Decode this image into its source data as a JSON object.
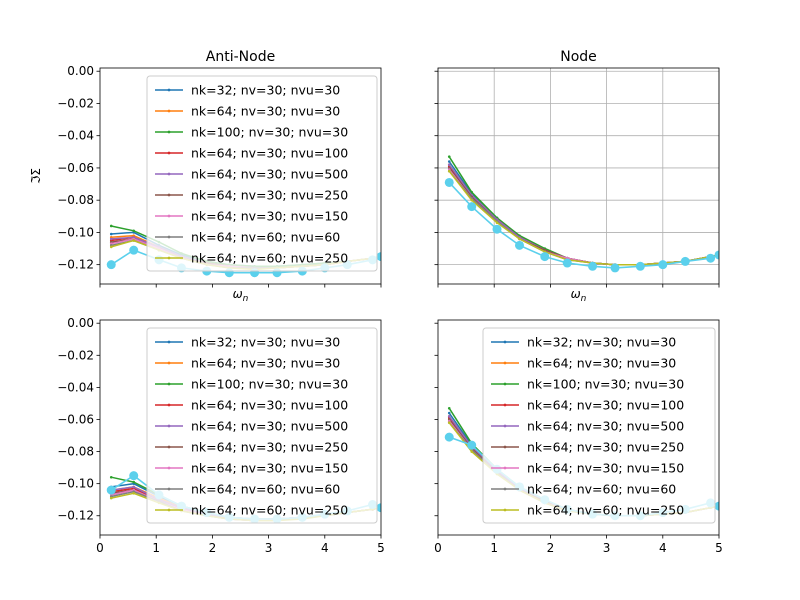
{
  "chart_data": [
    {
      "type": "line",
      "title": "Anti-Node",
      "xlabel": "ω_n",
      "ylabel": "ℑΣ",
      "xlim": [
        0,
        5
      ],
      "ylim": [
        -0.132,
        0.002
      ],
      "x_ticks": [],
      "y_ticks": [
        "0.00",
        "−0.02",
        "−0.04",
        "−0.06",
        "−0.08",
        "−0.10",
        "−0.12"
      ],
      "grid": false,
      "legend": "upper-right",
      "x": [
        0.2,
        0.6,
        1.05,
        1.45,
        1.9,
        2.3,
        2.75,
        3.15,
        3.6,
        4.0,
        4.4,
        4.85,
        5.0
      ],
      "series": [
        {
          "name": "nk=32; nv=30; nvu=30",
          "color": "#1f77b4",
          "values": [
            -0.101,
            -0.1,
            -0.108,
            -0.114,
            -0.118,
            -0.12,
            -0.121,
            -0.121,
            -0.12,
            -0.119,
            -0.118,
            -0.116,
            -0.115
          ]
        },
        {
          "name": "nk=64; nv=30; nvu=30",
          "color": "#ff7f0e",
          "values": [
            -0.103,
            -0.102,
            -0.109,
            -0.115,
            -0.119,
            -0.121,
            -0.122,
            -0.122,
            -0.121,
            -0.12,
            -0.118,
            -0.116,
            -0.115
          ]
        },
        {
          "name": "nk=100; nv=30; nvu=30",
          "color": "#2ca02c",
          "values": [
            -0.096,
            -0.099,
            -0.106,
            -0.113,
            -0.118,
            -0.12,
            -0.121,
            -0.121,
            -0.12,
            -0.119,
            -0.118,
            -0.116,
            -0.115
          ]
        },
        {
          "name": "nk=64; nv=30; nvu=100",
          "color": "#d62728",
          "values": [
            -0.105,
            -0.103,
            -0.11,
            -0.115,
            -0.119,
            -0.121,
            -0.122,
            -0.122,
            -0.121,
            -0.12,
            -0.118,
            -0.116,
            -0.115
          ]
        },
        {
          "name": "nk=64; nv=30; nvu=500",
          "color": "#9467bd",
          "values": [
            -0.104,
            -0.103,
            -0.109,
            -0.115,
            -0.119,
            -0.121,
            -0.122,
            -0.122,
            -0.121,
            -0.12,
            -0.118,
            -0.116,
            -0.115
          ]
        },
        {
          "name": "nk=64; nv=30; nvu=250",
          "color": "#8c564b",
          "values": [
            -0.106,
            -0.104,
            -0.11,
            -0.116,
            -0.119,
            -0.121,
            -0.122,
            -0.122,
            -0.121,
            -0.12,
            -0.118,
            -0.116,
            -0.115
          ]
        },
        {
          "name": "nk=64; nv=30; nvu=150",
          "color": "#e377c2",
          "values": [
            -0.107,
            -0.104,
            -0.11,
            -0.116,
            -0.12,
            -0.121,
            -0.122,
            -0.122,
            -0.121,
            -0.12,
            -0.118,
            -0.116,
            -0.115
          ]
        },
        {
          "name": "nk=64; nv=60; nvu=60",
          "color": "#7f7f7f",
          "values": [
            -0.108,
            -0.105,
            -0.111,
            -0.116,
            -0.12,
            -0.122,
            -0.122,
            -0.122,
            -0.121,
            -0.12,
            -0.118,
            -0.116,
            -0.115
          ]
        },
        {
          "name": "nk=64; nv=60; nvu=250",
          "color": "#bcbd22",
          "values": [
            -0.109,
            -0.105,
            -0.111,
            -0.116,
            -0.12,
            -0.122,
            -0.123,
            -0.122,
            -0.121,
            -0.12,
            -0.118,
            -0.116,
            -0.115
          ]
        },
        {
          "color": "#5bd0ec",
          "marker": "large",
          "values": [
            -0.12,
            -0.111,
            -0.117,
            -0.122,
            -0.124,
            -0.125,
            -0.125,
            -0.125,
            -0.124,
            -0.122,
            -0.12,
            -0.117,
            -0.115
          ]
        }
      ]
    },
    {
      "type": "line",
      "title": "Node",
      "xlabel": "ω_n",
      "ylabel": "",
      "xlim": [
        0,
        5
      ],
      "ylim": [
        -0.132,
        0.002
      ],
      "x_ticks": [],
      "y_ticks": [],
      "grid": true,
      "legend": "none",
      "x": [
        0.2,
        0.6,
        1.05,
        1.45,
        1.9,
        2.3,
        2.75,
        3.15,
        3.6,
        4.0,
        4.4,
        4.85,
        5.0
      ],
      "series": [
        {
          "color": "#1f77b4",
          "values": [
            -0.056,
            -0.076,
            -0.091,
            -0.103,
            -0.111,
            -0.116,
            -0.119,
            -0.12,
            -0.12,
            -0.119,
            -0.118,
            -0.115,
            -0.114
          ]
        },
        {
          "color": "#ff7f0e",
          "values": [
            -0.058,
            -0.077,
            -0.092,
            -0.103,
            -0.111,
            -0.116,
            -0.119,
            -0.12,
            -0.12,
            -0.119,
            -0.118,
            -0.115,
            -0.114
          ]
        },
        {
          "color": "#2ca02c",
          "values": [
            -0.053,
            -0.075,
            -0.091,
            -0.102,
            -0.11,
            -0.116,
            -0.119,
            -0.12,
            -0.12,
            -0.119,
            -0.118,
            -0.115,
            -0.114
          ]
        },
        {
          "color": "#d62728",
          "values": [
            -0.059,
            -0.078,
            -0.092,
            -0.103,
            -0.111,
            -0.116,
            -0.119,
            -0.12,
            -0.12,
            -0.119,
            -0.118,
            -0.115,
            -0.114
          ]
        },
        {
          "color": "#9467bd",
          "values": [
            -0.058,
            -0.077,
            -0.092,
            -0.103,
            -0.111,
            -0.116,
            -0.119,
            -0.12,
            -0.12,
            -0.119,
            -0.118,
            -0.115,
            -0.114
          ]
        },
        {
          "color": "#8c564b",
          "values": [
            -0.06,
            -0.078,
            -0.093,
            -0.104,
            -0.111,
            -0.116,
            -0.119,
            -0.12,
            -0.12,
            -0.119,
            -0.118,
            -0.115,
            -0.114
          ]
        },
        {
          "color": "#e377c2",
          "values": [
            -0.061,
            -0.079,
            -0.093,
            -0.104,
            -0.112,
            -0.116,
            -0.119,
            -0.12,
            -0.12,
            -0.119,
            -0.118,
            -0.115,
            -0.114
          ]
        },
        {
          "color": "#7f7f7f",
          "values": [
            -0.062,
            -0.079,
            -0.093,
            -0.104,
            -0.112,
            -0.117,
            -0.119,
            -0.12,
            -0.12,
            -0.119,
            -0.118,
            -0.115,
            -0.114
          ]
        },
        {
          "color": "#bcbd22",
          "values": [
            -0.062,
            -0.08,
            -0.094,
            -0.104,
            -0.112,
            -0.117,
            -0.119,
            -0.12,
            -0.12,
            -0.119,
            -0.118,
            -0.115,
            -0.114
          ]
        },
        {
          "color": "#5bd0ec",
          "marker": "large",
          "values": [
            -0.069,
            -0.084,
            -0.098,
            -0.108,
            -0.115,
            -0.119,
            -0.121,
            -0.122,
            -0.121,
            -0.12,
            -0.118,
            -0.116,
            -0.114
          ]
        }
      ]
    },
    {
      "type": "line",
      "title": "",
      "xlabel": "",
      "ylabel": "",
      "xlim": [
        0,
        5
      ],
      "ylim": [
        -0.132,
        0.002
      ],
      "x_ticks": [
        "0",
        "1",
        "2",
        "3",
        "4",
        "5"
      ],
      "y_ticks": [
        "0.00",
        "−0.02",
        "−0.04",
        "−0.06",
        "−0.08",
        "−0.10",
        "−0.12"
      ],
      "grid": false,
      "legend": "upper-right",
      "x": [
        0.2,
        0.6,
        1.05,
        1.45,
        1.9,
        2.3,
        2.75,
        3.15,
        3.6,
        4.0,
        4.4,
        4.85,
        5.0
      ],
      "series": [
        {
          "name": "nk=32; nv=30; nvu=30",
          "color": "#1f77b4",
          "values": [
            -0.102,
            -0.1,
            -0.108,
            -0.114,
            -0.118,
            -0.121,
            -0.122,
            -0.122,
            -0.121,
            -0.12,
            -0.118,
            -0.116,
            -0.115
          ]
        },
        {
          "name": "nk=64; nv=30; nvu=30",
          "color": "#ff7f0e",
          "values": [
            -0.104,
            -0.102,
            -0.109,
            -0.115,
            -0.119,
            -0.121,
            -0.122,
            -0.122,
            -0.121,
            -0.12,
            -0.118,
            -0.116,
            -0.115
          ]
        },
        {
          "name": "nk=100; nv=30; nvu=30",
          "color": "#2ca02c",
          "values": [
            -0.096,
            -0.099,
            -0.107,
            -0.114,
            -0.118,
            -0.121,
            -0.122,
            -0.122,
            -0.121,
            -0.12,
            -0.118,
            -0.116,
            -0.115
          ]
        },
        {
          "name": "nk=64; nv=30; nvu=100",
          "color": "#d62728",
          "values": [
            -0.105,
            -0.103,
            -0.11,
            -0.116,
            -0.119,
            -0.122,
            -0.123,
            -0.122,
            -0.121,
            -0.12,
            -0.118,
            -0.116,
            -0.115
          ]
        },
        {
          "name": "nk=64; nv=30; nvu=500",
          "color": "#9467bd",
          "values": [
            -0.104,
            -0.102,
            -0.11,
            -0.115,
            -0.119,
            -0.121,
            -0.122,
            -0.122,
            -0.121,
            -0.12,
            -0.118,
            -0.116,
            -0.115
          ]
        },
        {
          "name": "nk=64; nv=30; nvu=250",
          "color": "#8c564b",
          "values": [
            -0.106,
            -0.104,
            -0.111,
            -0.116,
            -0.12,
            -0.122,
            -0.123,
            -0.122,
            -0.121,
            -0.12,
            -0.118,
            -0.116,
            -0.115
          ]
        },
        {
          "name": "nk=64; nv=30; nvu=150",
          "color": "#e377c2",
          "values": [
            -0.107,
            -0.104,
            -0.111,
            -0.116,
            -0.12,
            -0.122,
            -0.123,
            -0.122,
            -0.121,
            -0.12,
            -0.118,
            -0.116,
            -0.115
          ]
        },
        {
          "name": "nk=64; nv=60; nvu=60",
          "color": "#7f7f7f",
          "values": [
            -0.108,
            -0.105,
            -0.111,
            -0.117,
            -0.12,
            -0.122,
            -0.123,
            -0.123,
            -0.121,
            -0.12,
            -0.118,
            -0.116,
            -0.115
          ]
        },
        {
          "name": "nk=64; nv=60; nvu=250",
          "color": "#bcbd22",
          "values": [
            -0.109,
            -0.106,
            -0.112,
            -0.117,
            -0.12,
            -0.122,
            -0.123,
            -0.123,
            -0.122,
            -0.12,
            -0.118,
            -0.116,
            -0.115
          ]
        },
        {
          "color": "#5bd0ec",
          "marker": "large",
          "values": [
            -0.104,
            -0.095,
            -0.107,
            -0.114,
            -0.118,
            -0.121,
            -0.122,
            -0.122,
            -0.121,
            -0.119,
            -0.117,
            -0.113,
            -0.115
          ]
        }
      ]
    },
    {
      "type": "line",
      "title": "",
      "xlabel": "",
      "ylabel": "",
      "xlim": [
        0,
        5
      ],
      "ylim": [
        -0.132,
        0.002
      ],
      "x_ticks": [
        "0",
        "1",
        "2",
        "3",
        "4",
        "5"
      ],
      "y_ticks": [],
      "grid": false,
      "legend": "upper-right",
      "x": [
        0.2,
        0.6,
        1.05,
        1.45,
        1.9,
        2.3,
        2.75,
        3.15,
        3.6,
        4.0,
        4.4,
        4.85,
        5.0
      ],
      "series": [
        {
          "name": "nk=32; nv=30; nvu=30",
          "color": "#1f77b4",
          "values": [
            -0.056,
            -0.076,
            -0.091,
            -0.103,
            -0.111,
            -0.116,
            -0.119,
            -0.12,
            -0.12,
            -0.119,
            -0.118,
            -0.115,
            -0.114
          ]
        },
        {
          "name": "nk=64; nv=30; nvu=30",
          "color": "#ff7f0e",
          "values": [
            -0.058,
            -0.077,
            -0.092,
            -0.103,
            -0.111,
            -0.116,
            -0.119,
            -0.12,
            -0.12,
            -0.119,
            -0.118,
            -0.115,
            -0.114
          ]
        },
        {
          "name": "nk=100; nv=30; nvu=30",
          "color": "#2ca02c",
          "values": [
            -0.053,
            -0.075,
            -0.091,
            -0.102,
            -0.11,
            -0.116,
            -0.119,
            -0.12,
            -0.12,
            -0.119,
            -0.118,
            -0.115,
            -0.114
          ]
        },
        {
          "name": "nk=64; nv=30; nvu=100",
          "color": "#d62728",
          "values": [
            -0.059,
            -0.078,
            -0.092,
            -0.103,
            -0.111,
            -0.116,
            -0.119,
            -0.12,
            -0.12,
            -0.119,
            -0.118,
            -0.115,
            -0.114
          ]
        },
        {
          "name": "nk=64; nv=30; nvu=500",
          "color": "#9467bd",
          "values": [
            -0.058,
            -0.077,
            -0.092,
            -0.103,
            -0.111,
            -0.116,
            -0.119,
            -0.12,
            -0.12,
            -0.119,
            -0.118,
            -0.115,
            -0.114
          ]
        },
        {
          "name": "nk=64; nv=30; nvu=250",
          "color": "#8c564b",
          "values": [
            -0.06,
            -0.078,
            -0.093,
            -0.104,
            -0.111,
            -0.116,
            -0.119,
            -0.12,
            -0.12,
            -0.119,
            -0.118,
            -0.115,
            -0.114
          ]
        },
        {
          "name": "nk=64; nv=30; nvu=150",
          "color": "#e377c2",
          "values": [
            -0.061,
            -0.079,
            -0.093,
            -0.104,
            -0.112,
            -0.116,
            -0.119,
            -0.12,
            -0.12,
            -0.119,
            -0.118,
            -0.115,
            -0.114
          ]
        },
        {
          "name": "nk=64; nv=60; nvu=60",
          "color": "#7f7f7f",
          "values": [
            -0.062,
            -0.079,
            -0.093,
            -0.104,
            -0.112,
            -0.117,
            -0.119,
            -0.12,
            -0.12,
            -0.119,
            -0.118,
            -0.115,
            -0.114
          ]
        },
        {
          "name": "nk=64; nv=60; nvu=250",
          "color": "#bcbd22",
          "values": [
            -0.062,
            -0.08,
            -0.094,
            -0.104,
            -0.112,
            -0.117,
            -0.119,
            -0.12,
            -0.12,
            -0.119,
            -0.118,
            -0.115,
            -0.114
          ]
        },
        {
          "color": "#5bd0ec",
          "marker": "large",
          "values": [
            -0.071,
            -0.076,
            -0.091,
            -0.102,
            -0.11,
            -0.116,
            -0.119,
            -0.12,
            -0.12,
            -0.118,
            -0.116,
            -0.112,
            -0.114
          ]
        }
      ]
    }
  ]
}
